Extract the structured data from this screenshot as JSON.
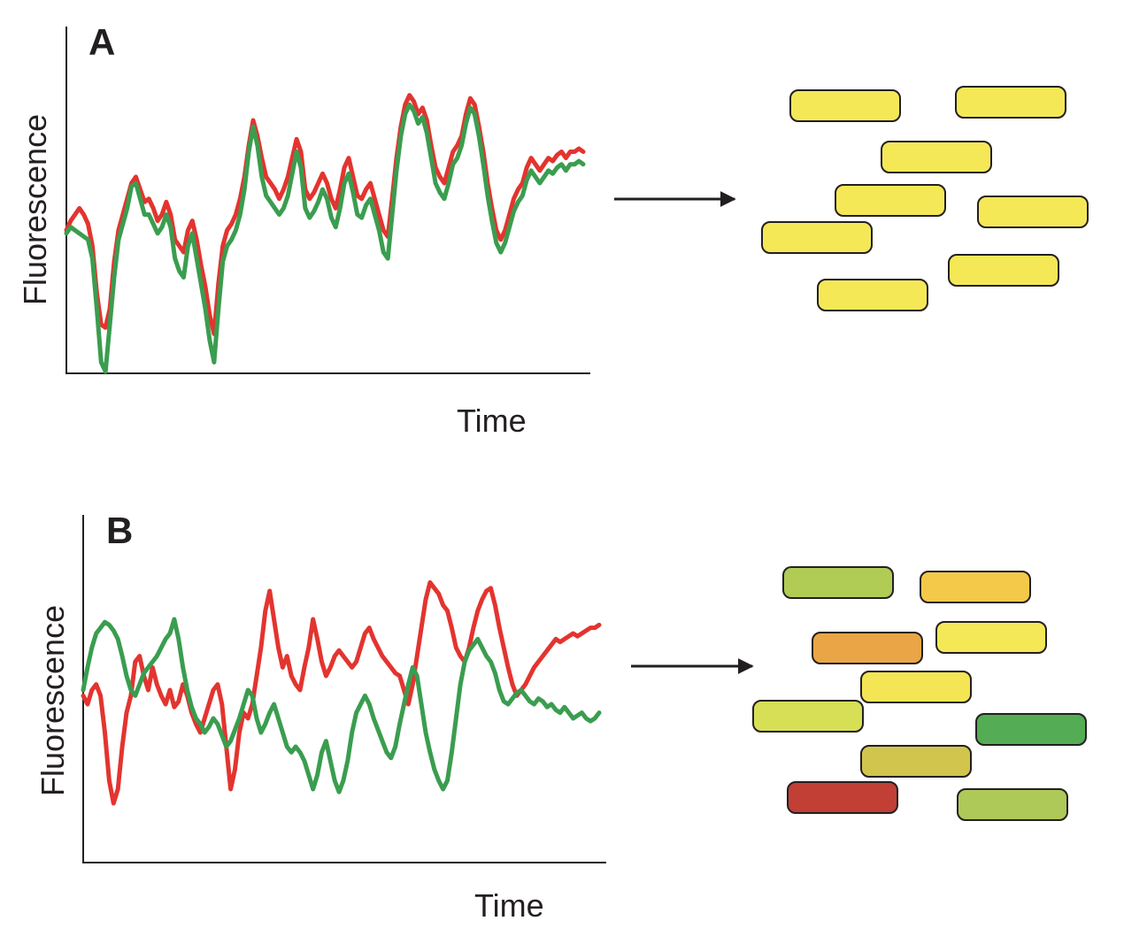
{
  "colors": {
    "red_trace": "#e3342f",
    "green_trace": "#3a9d4f",
    "axis": "#231f20",
    "arrow": "#231f20",
    "cell_outline": "#231f20"
  },
  "chart_data": [
    {
      "type": "line",
      "panel": "A",
      "xlabel": "Time",
      "ylabel": "Fluorescence",
      "note_description_excluded": true,
      "x_points": 120,
      "series": [
        {
          "color": "#e3342f",
          "values": [
            0.45,
            0.48,
            0.5,
            0.52,
            0.5,
            0.47,
            0.4,
            0.25,
            0.15,
            0.14,
            0.2,
            0.35,
            0.45,
            0.5,
            0.55,
            0.6,
            0.62,
            0.58,
            0.54,
            0.55,
            0.52,
            0.48,
            0.5,
            0.54,
            0.5,
            0.42,
            0.4,
            0.38,
            0.45,
            0.48,
            0.42,
            0.34,
            0.27,
            0.18,
            0.12,
            0.28,
            0.4,
            0.45,
            0.47,
            0.5,
            0.55,
            0.62,
            0.72,
            0.8,
            0.75,
            0.68,
            0.62,
            0.6,
            0.58,
            0.55,
            0.58,
            0.62,
            0.68,
            0.74,
            0.7,
            0.58,
            0.55,
            0.57,
            0.6,
            0.63,
            0.6,
            0.55,
            0.52,
            0.58,
            0.65,
            0.68,
            0.62,
            0.56,
            0.55,
            0.58,
            0.6,
            0.55,
            0.5,
            0.45,
            0.43,
            0.55,
            0.68,
            0.78,
            0.85,
            0.88,
            0.86,
            0.82,
            0.84,
            0.8,
            0.72,
            0.65,
            0.62,
            0.6,
            0.65,
            0.7,
            0.72,
            0.75,
            0.82,
            0.87,
            0.85,
            0.78,
            0.7,
            0.6,
            0.52,
            0.45,
            0.42,
            0.45,
            0.5,
            0.55,
            0.58,
            0.6,
            0.65,
            0.68,
            0.66,
            0.64,
            0.66,
            0.68,
            0.67,
            0.69,
            0.7,
            0.68,
            0.7,
            0.7,
            0.71,
            0.7
          ]
        },
        {
          "color": "#3a9d4f",
          "values": [
            0.44,
            0.46,
            0.45,
            0.44,
            0.43,
            0.42,
            0.36,
            0.2,
            0.03,
            0.0,
            0.15,
            0.3,
            0.42,
            0.47,
            0.52,
            0.59,
            0.6,
            0.55,
            0.5,
            0.5,
            0.47,
            0.44,
            0.46,
            0.5,
            0.46,
            0.36,
            0.32,
            0.3,
            0.4,
            0.44,
            0.36,
            0.28,
            0.2,
            0.1,
            0.03,
            0.2,
            0.35,
            0.4,
            0.42,
            0.45,
            0.5,
            0.58,
            0.7,
            0.78,
            0.72,
            0.62,
            0.56,
            0.54,
            0.52,
            0.5,
            0.52,
            0.56,
            0.63,
            0.7,
            0.65,
            0.52,
            0.49,
            0.51,
            0.54,
            0.58,
            0.55,
            0.49,
            0.46,
            0.52,
            0.6,
            0.63,
            0.57,
            0.5,
            0.49,
            0.53,
            0.55,
            0.5,
            0.45,
            0.38,
            0.36,
            0.5,
            0.64,
            0.75,
            0.82,
            0.85,
            0.83,
            0.79,
            0.81,
            0.76,
            0.68,
            0.6,
            0.57,
            0.55,
            0.6,
            0.66,
            0.68,
            0.72,
            0.79,
            0.84,
            0.82,
            0.75,
            0.66,
            0.56,
            0.48,
            0.41,
            0.38,
            0.41,
            0.46,
            0.51,
            0.54,
            0.56,
            0.61,
            0.64,
            0.62,
            0.6,
            0.62,
            0.64,
            0.63,
            0.65,
            0.66,
            0.64,
            0.66,
            0.66,
            0.67,
            0.66
          ]
        }
      ]
    },
    {
      "type": "line",
      "panel": "B",
      "xlabel": "Time",
      "ylabel": "Fluorescence",
      "x_points": 120,
      "series": [
        {
          "color": "#e3342f",
          "values": [
            0.48,
            0.45,
            0.5,
            0.52,
            0.48,
            0.35,
            0.18,
            0.1,
            0.15,
            0.3,
            0.42,
            0.48,
            0.6,
            0.62,
            0.55,
            0.5,
            0.58,
            0.52,
            0.48,
            0.45,
            0.5,
            0.44,
            0.46,
            0.52,
            0.48,
            0.42,
            0.38,
            0.35,
            0.4,
            0.45,
            0.5,
            0.52,
            0.45,
            0.3,
            0.15,
            0.22,
            0.35,
            0.42,
            0.4,
            0.45,
            0.55,
            0.65,
            0.78,
            0.85,
            0.75,
            0.65,
            0.58,
            0.62,
            0.55,
            0.52,
            0.5,
            0.58,
            0.65,
            0.75,
            0.68,
            0.6,
            0.55,
            0.58,
            0.62,
            0.64,
            0.62,
            0.6,
            0.58,
            0.6,
            0.65,
            0.7,
            0.72,
            0.68,
            0.65,
            0.62,
            0.6,
            0.58,
            0.56,
            0.55,
            0.5,
            0.45,
            0.52,
            0.62,
            0.72,
            0.82,
            0.88,
            0.86,
            0.84,
            0.8,
            0.78,
            0.72,
            0.65,
            0.62,
            0.6,
            0.65,
            0.72,
            0.78,
            0.82,
            0.85,
            0.86,
            0.8,
            0.72,
            0.65,
            0.58,
            0.52,
            0.48,
            0.5,
            0.52,
            0.55,
            0.58,
            0.6,
            0.62,
            0.64,
            0.66,
            0.68,
            0.67,
            0.68,
            0.69,
            0.7,
            0.69,
            0.7,
            0.71,
            0.72,
            0.72,
            0.73
          ]
        },
        {
          "color": "#3a9d4f",
          "values": [
            0.5,
            0.58,
            0.65,
            0.7,
            0.72,
            0.74,
            0.73,
            0.71,
            0.68,
            0.62,
            0.55,
            0.5,
            0.48,
            0.52,
            0.56,
            0.58,
            0.6,
            0.62,
            0.65,
            0.68,
            0.7,
            0.75,
            0.68,
            0.58,
            0.5,
            0.44,
            0.4,
            0.38,
            0.35,
            0.37,
            0.4,
            0.38,
            0.34,
            0.3,
            0.32,
            0.36,
            0.4,
            0.45,
            0.5,
            0.48,
            0.4,
            0.35,
            0.38,
            0.42,
            0.45,
            0.4,
            0.35,
            0.3,
            0.28,
            0.3,
            0.28,
            0.25,
            0.2,
            0.15,
            0.2,
            0.28,
            0.32,
            0.25,
            0.18,
            0.14,
            0.18,
            0.25,
            0.35,
            0.42,
            0.45,
            0.48,
            0.45,
            0.4,
            0.36,
            0.32,
            0.28,
            0.26,
            0.3,
            0.38,
            0.45,
            0.52,
            0.58,
            0.55,
            0.45,
            0.35,
            0.28,
            0.22,
            0.18,
            0.15,
            0.18,
            0.28,
            0.4,
            0.52,
            0.6,
            0.64,
            0.66,
            0.68,
            0.65,
            0.62,
            0.6,
            0.56,
            0.5,
            0.46,
            0.45,
            0.47,
            0.49,
            0.5,
            0.48,
            0.46,
            0.45,
            0.47,
            0.46,
            0.44,
            0.45,
            0.43,
            0.42,
            0.44,
            0.42,
            0.4,
            0.41,
            0.42,
            0.4,
            0.39,
            0.4,
            0.42
          ]
        }
      ]
    }
  ],
  "panels": {
    "A": {
      "letter": "A",
      "ylabel": "Fluorescence",
      "xlabel": "Time",
      "cells": [
        {
          "color": "#f5e857"
        },
        {
          "color": "#f5e857"
        },
        {
          "color": "#f5e857"
        },
        {
          "color": "#f5e857"
        },
        {
          "color": "#f5e857"
        },
        {
          "color": "#f5e857"
        },
        {
          "color": "#f5e857"
        },
        {
          "color": "#f5e857"
        }
      ]
    },
    "B": {
      "letter": "B",
      "ylabel": "Fluorescence",
      "xlabel": "Time",
      "cells": [
        {
          "color": "#b0cc55"
        },
        {
          "color": "#f4c94a"
        },
        {
          "color": "#eaa646"
        },
        {
          "color": "#f5e857"
        },
        {
          "color": "#f3e553"
        },
        {
          "color": "#d7df56"
        },
        {
          "color": "#54ad54"
        },
        {
          "color": "#d1c54d"
        },
        {
          "color": "#c13f35"
        },
        {
          "color": "#aec957"
        }
      ]
    }
  }
}
